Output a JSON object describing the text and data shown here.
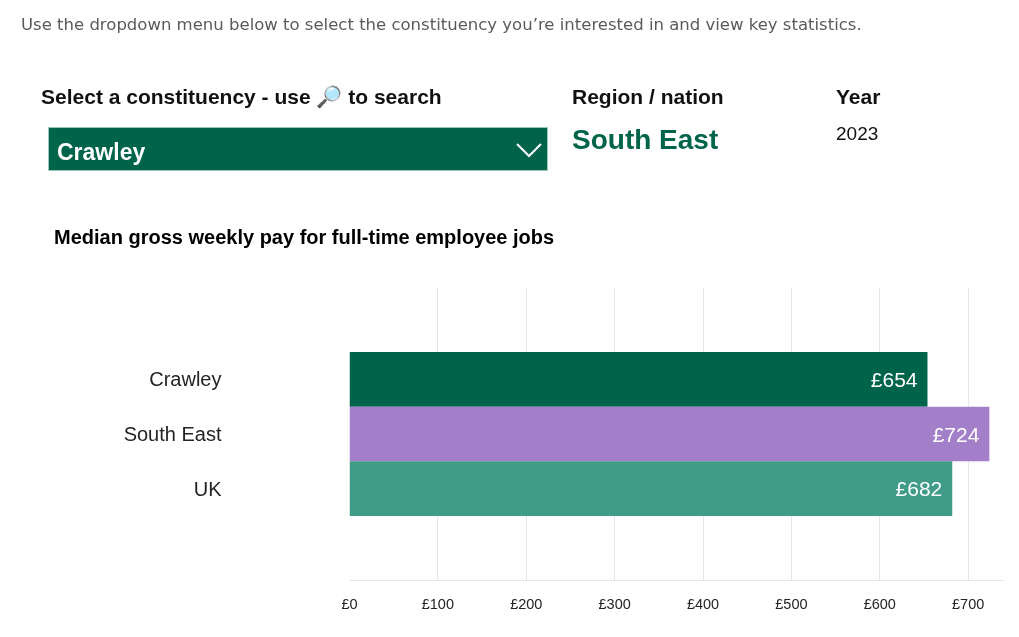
{
  "chart_data": {
    "type": "bar",
    "orientation": "horizontal",
    "title": "Median gross weekly pay for full-time employee jobs",
    "categories": [
      "Crawley",
      "South East",
      "UK"
    ],
    "values": [
      654,
      724,
      682
    ],
    "colors": [
      "#00644a",
      "#a37fc9",
      "#409c88"
    ],
    "value_labels": [
      "£654",
      "£724",
      "£682"
    ],
    "xlim": [
      0,
      740
    ],
    "xticks": [
      {
        "value": 0,
        "label": "£0"
      },
      {
        "value": 100,
        "label": "£100"
      },
      {
        "value": 200,
        "label": "£200"
      },
      {
        "value": 300,
        "label": "£300"
      },
      {
        "value": 400,
        "label": "£400"
      },
      {
        "value": 500,
        "label": "£500"
      },
      {
        "value": 600,
        "label": "£600"
      },
      {
        "value": 700,
        "label": "£700"
      }
    ],
    "grid": "x",
    "annotations": [
      "Use the dropdown menu below to select the constituency you’re interested in and view key statistics.",
      "Select a constituency - use 🔎 to search",
      "Crawley",
      "Region / nation",
      "South East",
      "Year",
      "2023"
    ]
  }
}
